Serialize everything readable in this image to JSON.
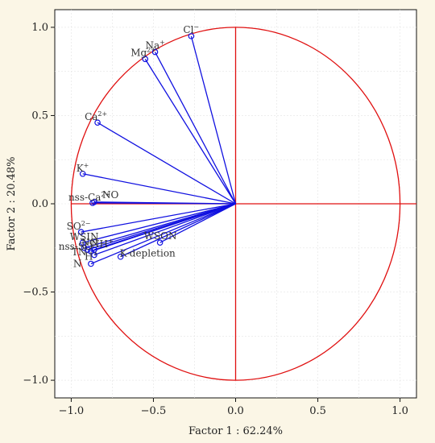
{
  "chart_data": {
    "type": "scatter",
    "subtype": "pca-loading-plot",
    "xlabel": "Factor 1 : 62.24%",
    "ylabel": "Factor 2 : 20.48%",
    "xlim": [
      -1.1,
      1.1
    ],
    "ylim": [
      -1.1,
      1.1
    ],
    "x_ticks": [
      -1.0,
      -0.5,
      0.0,
      0.5,
      1.0
    ],
    "y_ticks": [
      -1.0,
      -0.5,
      0.0,
      0.5,
      1.0
    ],
    "x_tick_labels": [
      "−1.0",
      "−0.5",
      "0.0",
      "0.5",
      "1.0"
    ],
    "y_tick_labels": [
      "−1.0",
      "−0.5",
      "0.0",
      "0.5",
      "1.0"
    ],
    "grid": true,
    "unit_circle": true,
    "colors": {
      "vectors": "#1010e0",
      "circle": "#e01010",
      "axes_cross": "#e01010",
      "background": "#ffffff",
      "page": "#fbf6e6"
    },
    "variables": [
      {
        "name": "Cl",
        "sup": "−",
        "x": -0.27,
        "y": 0.95
      },
      {
        "name": "Na",
        "sup": "+",
        "x": -0.49,
        "y": 0.86
      },
      {
        "name": "Mg",
        "sup": "2+",
        "x": -0.55,
        "y": 0.82
      },
      {
        "name": "Ca",
        "sup": "2+",
        "x": -0.84,
        "y": 0.46
      },
      {
        "name": "K",
        "sup": "+",
        "x": -0.93,
        "y": 0.17
      },
      {
        "name": "NO",
        "sup": "",
        "x": -0.86,
        "y": 0.01
      },
      {
        "name": "nss-Ca",
        "sup": "2+",
        "x": -0.87,
        "y": 0.005
      },
      {
        "name": "SO",
        "sup": "2−",
        "x": -0.94,
        "y": -0.16
      },
      {
        "name": "WSIN",
        "sup": "",
        "x": -0.93,
        "y": -0.22
      },
      {
        "name": "nss-SO",
        "sup": "",
        "x": -0.92,
        "y": -0.25
      },
      {
        "name": "NO",
        "sup": "",
        "x": -0.9,
        "y": -0.26
      },
      {
        "name": "NH",
        "sup": "+",
        "x": -0.86,
        "y": -0.26
      },
      {
        "name": "TN",
        "sup": "",
        "x": -0.88,
        "y": -0.27
      },
      {
        "name": "H",
        "sup": "+",
        "x": -0.86,
        "y": -0.29
      },
      {
        "name": "N",
        "sup": "",
        "x": -0.88,
        "y": -0.34
      },
      {
        "name": "K-depletion",
        "sup": "",
        "x": -0.7,
        "y": -0.3
      },
      {
        "name": "WSON",
        "sup": "",
        "x": -0.46,
        "y": -0.22
      }
    ]
  }
}
